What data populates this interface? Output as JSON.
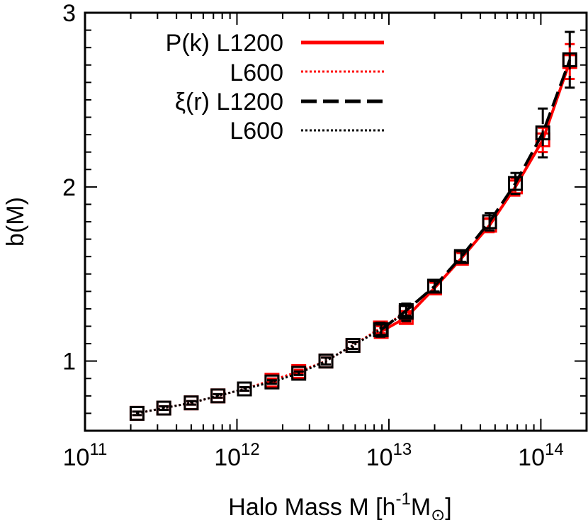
{
  "chart_data": {
    "type": "line",
    "xlabel": "Halo Mass M [h",
    "xlabel_sup1": "-1",
    "xlabel_mid": "M",
    "xlabel_sub": "⊙",
    "xlabel_end": "]",
    "ylabel": "b(M)",
    "x_scale": "log",
    "xlim": [
      100000000000.0,
      200000000000000.0
    ],
    "ylim": [
      0.6,
      3.0
    ],
    "x_ticks": [
      {
        "value": 100000000000.0,
        "base": "10",
        "exp": "11"
      },
      {
        "value": 1000000000000.0,
        "base": "10",
        "exp": "12"
      },
      {
        "value": 10000000000000.0,
        "base": "10",
        "exp": "13"
      },
      {
        "value": 100000000000000.0,
        "base": "10",
        "exp": "14"
      }
    ],
    "y_ticks": [
      {
        "value": 1,
        "label": "1"
      },
      {
        "value": 2,
        "label": "2"
      },
      {
        "value": 3,
        "label": "3"
      }
    ],
    "grid": false,
    "legend_position": "top-left",
    "series": [
      {
        "name": "P(k) L1200",
        "color": "#ff0000",
        "dash": "solid",
        "x": [
          8900000000000.0,
          13000000000000.0,
          20000000000000.0,
          30000000000000.0,
          46000000000000.0,
          68000000000000.0,
          103000000000000.0,
          155000000000000.0
        ],
        "y": [
          1.17,
          1.25,
          1.42,
          1.59,
          1.78,
          2.0,
          2.27,
          2.72
        ],
        "err": [
          0.03,
          0.03,
          0.03,
          0.03,
          0.04,
          0.05,
          0.07,
          0.1
        ]
      },
      {
        "name": "L600",
        "color": "#ff0000",
        "dash": "dotted",
        "x": [
          220000000000.0,
          330000000000.0,
          500000000000.0,
          750000000000.0,
          1120000000000.0,
          1700000000000.0,
          2550000000000.0,
          3850000000000.0,
          5800000000000.0,
          8800000000000.0,
          13000000000000.0
        ],
        "y": [
          0.7,
          0.73,
          0.76,
          0.8,
          0.84,
          0.89,
          0.94,
          1.0,
          1.09,
          1.19,
          1.28
        ],
        "err": [
          0.01,
          0.01,
          0.01,
          0.01,
          0.01,
          0.01,
          0.01,
          0.02,
          0.02,
          0.03,
          0.04
        ]
      },
      {
        "name": "ξ(r) L1200",
        "color": "#000000",
        "dash": "dashed",
        "x": [
          8900000000000.0,
          13000000000000.0,
          20000000000000.0,
          30000000000000.0,
          46000000000000.0,
          68000000000000.0,
          103000000000000.0,
          155000000000000.0
        ],
        "y": [
          1.18,
          1.29,
          1.43,
          1.6,
          1.8,
          2.02,
          2.31,
          2.73
        ],
        "err": [
          0.03,
          0.03,
          0.03,
          0.03,
          0.05,
          0.06,
          0.14,
          0.16
        ]
      },
      {
        "name": "L600",
        "color": "#000000",
        "dash": "dotted",
        "x": [
          220000000000.0,
          330000000000.0,
          500000000000.0,
          750000000000.0,
          1120000000000.0,
          1700000000000.0,
          2550000000000.0,
          3850000000000.0,
          5800000000000.0,
          8800000000000.0,
          13000000000000.0
        ],
        "y": [
          0.7,
          0.73,
          0.76,
          0.8,
          0.84,
          0.88,
          0.93,
          1.0,
          1.09,
          1.18,
          1.28
        ],
        "err": [
          0.01,
          0.01,
          0.01,
          0.01,
          0.01,
          0.01,
          0.01,
          0.02,
          0.02,
          0.04,
          0.05
        ]
      }
    ]
  }
}
